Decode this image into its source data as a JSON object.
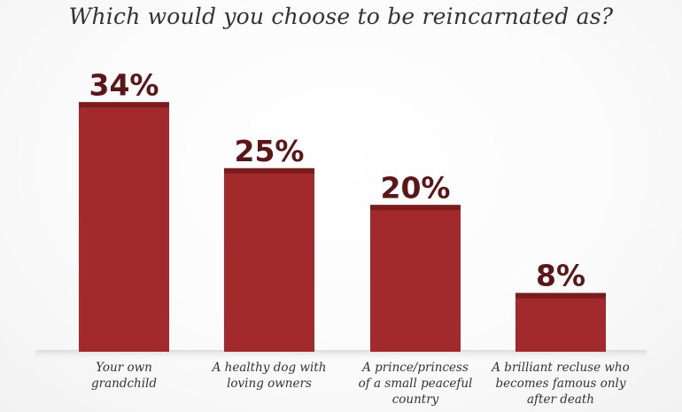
{
  "chart_data": {
    "type": "bar",
    "title": "Which would you choose to be reincarnated as?",
    "categories": [
      [
        "Your own",
        "grandchild"
      ],
      [
        "A healthy dog with",
        "loving owners"
      ],
      [
        "A prince/princess",
        "of a small peaceful",
        "country"
      ],
      [
        "A brilliant recluse who",
        "becomes famous only",
        "after death"
      ]
    ],
    "values": [
      34,
      25,
      20,
      8
    ],
    "value_labels": [
      "34%",
      "25%",
      "20%",
      "8%"
    ],
    "unit": "%",
    "ylim": [
      0,
      35
    ],
    "grid": false,
    "legend": "none",
    "colors": {
      "bar": "#a32a2c",
      "bar_cap": "#7a1c1e",
      "value_label": "#5a1618",
      "category_label": "#333333",
      "title": "#333333"
    }
  }
}
